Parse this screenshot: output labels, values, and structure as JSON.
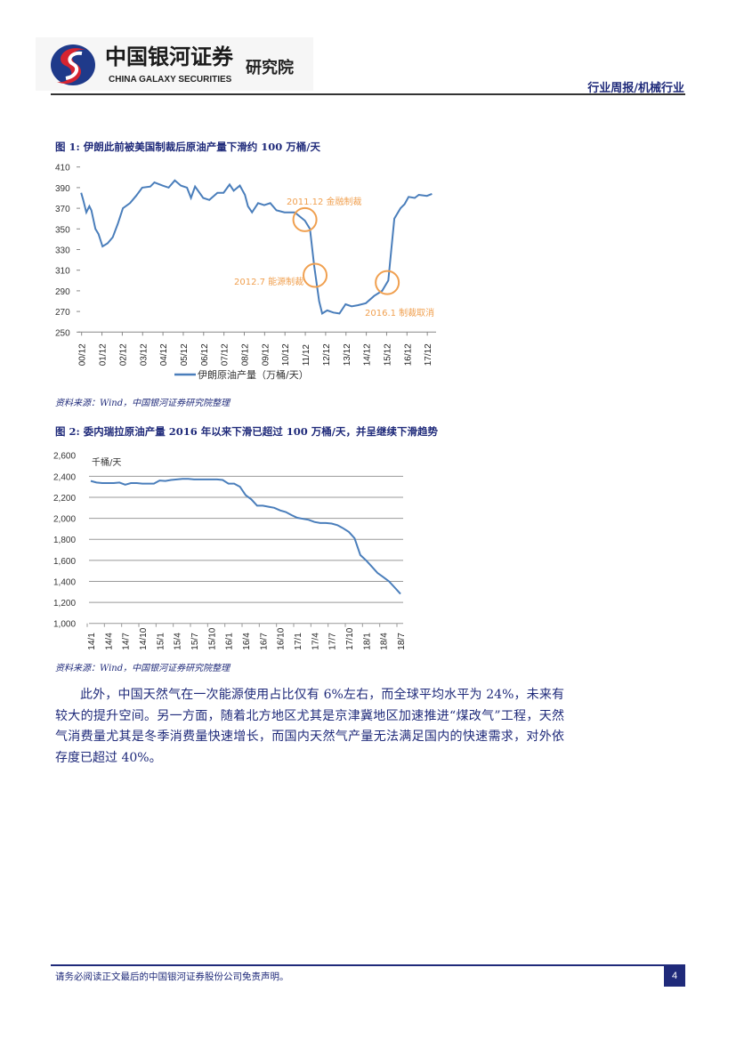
{
  "header": {
    "logo_cn": "中国银河证券",
    "logo_en": "CHINA GALAXY SECURITIES",
    "logo_inst": "研究院",
    "category": "行业周报/机械行业"
  },
  "figure1": {
    "title": "图 1:  伊朗此前被美国制裁后原油产量下滑约 100 万桶/天",
    "source": "资料来源：Wind，中国银河证券研究院整理"
  },
  "figure2": {
    "title": "图 2:  委内瑞拉原油产量 2016 年以来下滑已超过 100 万桶/天，并呈继续下滑趋势",
    "source": "资料来源：Wind，中国银河证券研究院整理"
  },
  "body": {
    "paragraph": "此外，中国天然气在一次能源使用占比仅有 6%左右，而全球平均水平为 24%，未来有较大的提升空间。另一方面，随着北方地区尤其是京津冀地区加速推进“煤改气”工程，天然气消费量尤其是冬季消费量快速增长，而国内天然气产量无法满足国内的快速需求，对外依存度已超过 40%。"
  },
  "footer": {
    "disclaimer": "请务必阅读正文最后的中国银河证券股份公司免责声明。",
    "page_number": "4"
  },
  "colors": {
    "line": "#4a7ebb",
    "annotation": "#f0a050",
    "title": "#1f2a7a"
  },
  "chart_data": [
    {
      "type": "line",
      "ylim": [
        250,
        410
      ],
      "yticks": [
        410,
        390,
        370,
        350,
        330,
        310,
        290,
        270,
        250
      ],
      "xticks": [
        "00/12",
        "01/12",
        "02/12",
        "03/12",
        "04/12",
        "05/12",
        "06/12",
        "07/12",
        "08/12",
        "09/12",
        "10/12",
        "11/12",
        "12/12",
        "13/12",
        "14/12",
        "15/12",
        "16/12",
        "17/12"
      ],
      "legend": "伊朗原油产量（万桶/天）",
      "legend_position": "bottom",
      "grid": false,
      "series": [
        {
          "name": "伊朗原油产量（万桶/天）",
          "x": [
            2000.9,
            2001.0,
            2001.15,
            2001.3,
            2001.4,
            2001.6,
            2001.75,
            2001.95,
            2002.2,
            2002.45,
            2002.7,
            2002.95,
            2003.3,
            2003.6,
            2003.9,
            2004.3,
            2004.5,
            2004.9,
            2005.2,
            2005.5,
            2005.8,
            2006.1,
            2006.3,
            2006.5,
            2006.9,
            2007.2,
            2007.6,
            2007.9,
            2008.2,
            2008.4,
            2008.7,
            2008.95,
            2009.1,
            2009.3,
            2009.6,
            2009.9,
            2010.2,
            2010.5,
            2010.9,
            2011.4,
            2011.9,
            2012.15,
            2012.35,
            2012.6,
            2012.75,
            2013.0,
            2013.3,
            2013.6,
            2013.9,
            2014.2,
            2014.5,
            2014.9,
            2015.3,
            2015.7,
            2016.0,
            2016.15,
            2016.3,
            2016.6,
            2016.8,
            2017.0,
            2017.3,
            2017.5,
            2017.9,
            2018.15
          ],
          "values": [
            385,
            378,
            366,
            372,
            368,
            350,
            345,
            333,
            336,
            342,
            355,
            370,
            375,
            382,
            390,
            391,
            395,
            392,
            390,
            397,
            392,
            390,
            380,
            391,
            380,
            378,
            385,
            385,
            393,
            387,
            392,
            383,
            372,
            366,
            375,
            373,
            375,
            368,
            366,
            366,
            358,
            350,
            315,
            280,
            268,
            271,
            269,
            268,
            277,
            275,
            276,
            278,
            285,
            290,
            300,
            330,
            360,
            370,
            374,
            381,
            380,
            383,
            382,
            384
          ]
        }
      ],
      "annotations": [
        {
          "text": "2011.12 金融制裁",
          "x": 2011.9,
          "y": 359
        },
        {
          "text": "2012.7 能源制裁",
          "x": 2012.4,
          "y": 305
        },
        {
          "text": "2016.1 制裁取消",
          "x": 2015.95,
          "y": 298
        }
      ]
    },
    {
      "type": "line",
      "ylim": [
        1000,
        2600
      ],
      "yticks": [
        "2,600",
        "2,400",
        "2,200",
        "2,000",
        "1,800",
        "1,600",
        "1,400",
        "1,200",
        "1,000"
      ],
      "unit": "千桶/天",
      "grid": true,
      "xticks": [
        "14/1",
        "14/4",
        "14/7",
        "14/10",
        "15/1",
        "15/4",
        "15/7",
        "15/10",
        "16/1",
        "16/4",
        "16/7",
        "16/10",
        "17/1",
        "17/4",
        "17/7",
        "17/10",
        "18/1",
        "18/4",
        "18/7"
      ],
      "series": [
        {
          "start": "2014-01",
          "frequency": "monthly",
          "values": [
            2355,
            2340,
            2335,
            2335,
            2335,
            2340,
            2320,
            2335,
            2335,
            2330,
            2330,
            2330,
            2360,
            2355,
            2365,
            2370,
            2375,
            2375,
            2370,
            2370,
            2370,
            2370,
            2370,
            2365,
            2330,
            2330,
            2300,
            2220,
            2180,
            2120,
            2120,
            2110,
            2100,
            2075,
            2060,
            2030,
            2005,
            1995,
            1985,
            1965,
            1955,
            1955,
            1950,
            1935,
            1905,
            1870,
            1810,
            1650,
            1600,
            1540,
            1480,
            1440,
            1400,
            1340,
            1280
          ]
        }
      ]
    }
  ]
}
